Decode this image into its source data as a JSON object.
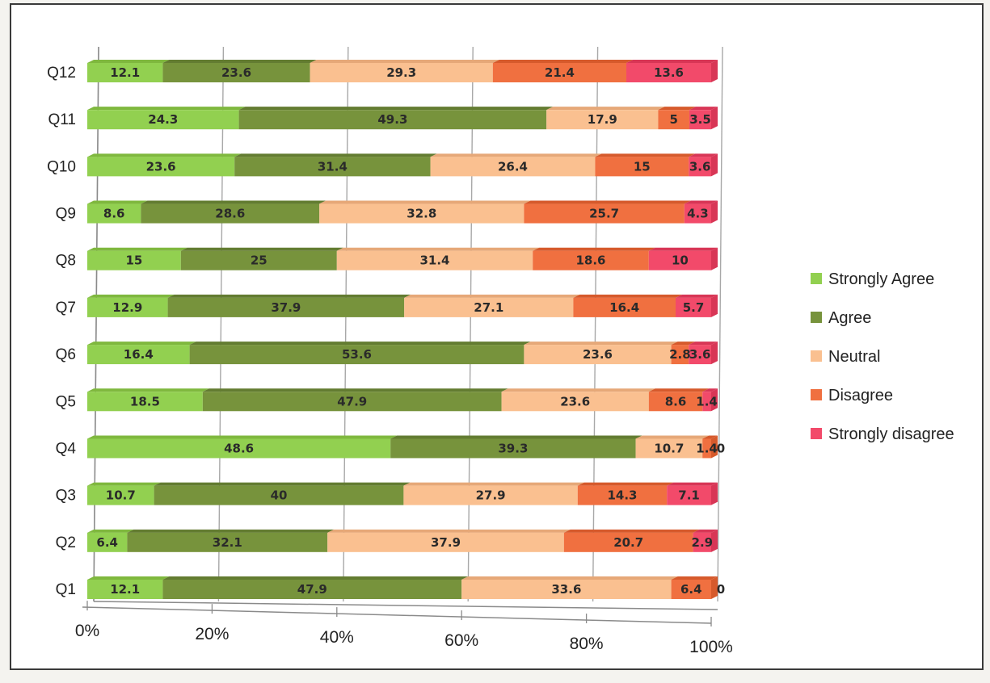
{
  "chart_data": {
    "type": "bar",
    "orientation": "horizontal",
    "stacked": "percent",
    "title": "",
    "xlabel": "",
    "ylabel": "",
    "xlim": [
      0,
      100
    ],
    "x_ticks": [
      "0%",
      "20%",
      "40%",
      "60%",
      "80%",
      "100%"
    ],
    "grid": true,
    "legend_position": "right",
    "categories": [
      "Q1",
      "Q2",
      "Q3",
      "Q4",
      "Q5",
      "Q6",
      "Q7",
      "Q8",
      "Q9",
      "Q10",
      "Q11",
      "Q12"
    ],
    "series": [
      {
        "name": "Strongly Agree",
        "color": "#92d050",
        "side_color": "#7fb83e",
        "values": [
          12.1,
          6.4,
          10.7,
          48.6,
          18.5,
          16.4,
          12.9,
          15,
          8.6,
          23.6,
          24.3,
          12.1
        ]
      },
      {
        "name": "Agree",
        "color": "#77933c",
        "side_color": "#637c31",
        "values": [
          47.9,
          32.1,
          40,
          39.3,
          47.9,
          53.6,
          37.9,
          25,
          28.6,
          31.4,
          49.3,
          23.6
        ]
      },
      {
        "name": "Neutral",
        "color": "#fac090",
        "side_color": "#e6a878",
        "values": [
          33.6,
          37.9,
          27.9,
          10.7,
          23.6,
          23.6,
          27.1,
          31.4,
          32.8,
          26.4,
          17.9,
          29.3
        ]
      },
      {
        "name": "Disagree",
        "color": "#f07040",
        "side_color": "#d65a2c",
        "values": [
          6.4,
          20.7,
          14.3,
          1.4,
          8.6,
          2.8,
          16.4,
          18.6,
          25.7,
          15,
          5,
          21.4
        ]
      },
      {
        "name": "Strongly disagree",
        "color": "#f24a6a",
        "side_color": "#d83656",
        "values": [
          0,
          2.9,
          7.1,
          0,
          1.4,
          3.6,
          5.7,
          10,
          4.3,
          3.6,
          3.5,
          13.6
        ]
      }
    ]
  }
}
